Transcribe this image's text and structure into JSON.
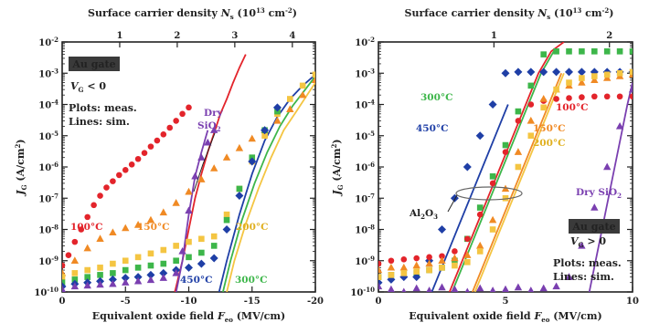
{
  "chart_data": [
    {
      "type": "scatter",
      "title": "",
      "top_axis_label": "Surface carrier density",
      "top_axis_symbol": "N",
      "top_axis_sub": "s",
      "top_axis_unit": "(10",
      "top_axis_unit_exp": "13",
      "top_axis_unit_tail": " cm",
      "top_axis_unit_exp2": "-2",
      "top_axis_unit_close": ")",
      "top_ticks": [
        "1",
        "2",
        "3",
        "4"
      ],
      "top_tick_values": [
        1,
        2,
        3,
        4
      ],
      "top_xlim": [
        0,
        4.4
      ],
      "xlabel": "Equivalent oxide field",
      "xlabel_symbol": "F",
      "xlabel_sub": "eo",
      "xlabel_unit": "(MV/cm)",
      "x_ticks": [
        "0",
        "-5",
        "-10",
        "-15",
        "-20"
      ],
      "x_tick_values": [
        0,
        -5,
        -10,
        -15,
        -20
      ],
      "xlim": [
        0,
        -20
      ],
      "ylabel_symbol": "J",
      "ylabel_sub": "G",
      "ylabel_unit": "(A/cm",
      "ylabel_unit_exp": "2",
      "ylabel_unit_close": ")",
      "y_ticks": [
        "-10",
        "-9",
        "-8",
        "-7",
        "-6",
        "-5",
        "-4",
        "-3",
        "-2"
      ],
      "ylim": [
        1e-10,
        0.01
      ],
      "yscale": "log",
      "box_label": "Au gate",
      "condition_prefix": "V",
      "condition_sub": "G",
      "condition_text": " < 0",
      "legend_lines": [
        "Plots: meas.",
        "Lines: sim."
      ],
      "series": [
        {
          "name": "100°C",
          "color": "#e3242b",
          "marker": "circle",
          "x": [
            0,
            -0.5,
            -1,
            -1.5,
            -2,
            -2.5,
            -3,
            -3.5,
            -4,
            -4.5,
            -5,
            -5.5,
            -6,
            -6.5,
            -7,
            -7.5,
            -8,
            -8.5,
            -9,
            -9.5,
            -10
          ],
          "y": [
            7e-10,
            1.5e-09,
            4e-09,
            1e-08,
            2.5e-08,
            6e-08,
            1.2e-07,
            2.2e-07,
            3.5e-07,
            5.5e-07,
            8e-07,
            1.2e-06,
            1.8e-06,
            2.8e-06,
            4.5e-06,
            7e-06,
            1.1e-05,
            1.8e-05,
            3e-05,
            5e-05,
            8e-05
          ]
        },
        {
          "name": "150°C",
          "color": "#f08a24",
          "marker": "triangle",
          "x": [
            0,
            -1,
            -2,
            -3,
            -4,
            -5,
            -6,
            -7,
            -8,
            -9,
            -10,
            -11,
            -12,
            -13,
            -14,
            -15,
            -16,
            -17,
            -18,
            -19,
            -20
          ],
          "y": [
            4e-10,
            1e-09,
            2.5e-09,
            5e-09,
            8e-09,
            1.1e-08,
            1.4e-08,
            2e-08,
            3.5e-08,
            7e-08,
            1.6e-07,
            4e-07,
            9e-07,
            2e-06,
            4e-06,
            8e-06,
            1.5e-05,
            3e-05,
            7e-05,
            0.0002,
            0.0006
          ]
        },
        {
          "name": "200°C",
          "color": "#f4c542",
          "marker": "square",
          "x": [
            0,
            -1,
            -2,
            -3,
            -4,
            -5,
            -6,
            -7,
            -8,
            -9,
            -10,
            -11,
            -12,
            -13,
            -14,
            -15,
            -16,
            -17,
            -18,
            -19,
            -20
          ],
          "y": [
            3e-10,
            4e-10,
            5e-10,
            6e-10,
            8e-10,
            1e-09,
            1.3e-09,
            1.7e-09,
            2.2e-09,
            3e-09,
            4e-09,
            5e-09,
            6e-09,
            3e-08,
            2e-07,
            1.5e-06,
            1e-05,
            5e-05,
            0.00015,
            0.0004,
            0.0009
          ]
        },
        {
          "name": "300°C",
          "color": "#3db64a",
          "marker": "square",
          "x": [
            0,
            -1,
            -2,
            -3,
            -4,
            -5,
            -6,
            -7,
            -8,
            -9,
            -10,
            -11,
            -12,
            -13,
            -14,
            -15,
            -16,
            -17
          ],
          "y": [
            2e-10,
            2.5e-10,
            3e-10,
            3.5e-10,
            4e-10,
            5e-10,
            6e-10,
            7e-10,
            8e-10,
            1e-09,
            1.3e-09,
            1.8e-09,
            3e-09,
            2e-08,
            2e-07,
            2e-06,
            1.5e-05,
            6e-05
          ]
        },
        {
          "name": "450°C",
          "color": "#1f3fa6",
          "marker": "diamond",
          "x": [
            0,
            -1,
            -2,
            -3,
            -4,
            -5,
            -6,
            -7,
            -8,
            -9,
            -10,
            -11,
            -12,
            -13,
            -14,
            -15,
            -16,
            -17
          ],
          "y": [
            1.5e-10,
            1.8e-10,
            2e-10,
            2.2e-10,
            2.5e-10,
            2.8e-10,
            3e-10,
            3.5e-10,
            4e-10,
            5e-10,
            6e-10,
            8e-10,
            1.2e-09,
            1e-08,
            1.2e-07,
            1.5e-06,
            1.5e-05,
            8e-05
          ]
        },
        {
          "name": "Dry SiO2",
          "color": "#7a3fb0",
          "marker": "triangle",
          "x": [
            0,
            -1,
            -2,
            -3,
            -4,
            -5,
            -6,
            -7,
            -8,
            -9,
            -9.5,
            -10,
            -10.5,
            -11,
            -11.5,
            -12
          ],
          "y": [
            1.2e-10,
            1.5e-10,
            1.6e-10,
            1.7e-10,
            1.8e-10,
            2e-10,
            2.2e-10,
            2.4e-10,
            2.8e-10,
            4e-10,
            2e-09,
            4e-08,
            5e-07,
            2e-06,
            6e-06,
            1.5e-05
          ]
        }
      ],
      "sim_lines": [
        {
          "color": "#e3242b",
          "x": [
            -8.9,
            -9.5,
            -10,
            -10.5,
            -11,
            -11.5,
            -12,
            -12.5,
            -13,
            -13.5,
            -14,
            -14.5
          ],
          "y": [
            1e-10,
            1e-09,
            1e-08,
            1e-07,
            6e-07,
            3e-06,
            1.2e-05,
            5e-05,
            0.00015,
            0.0005,
            0.0015,
            0.004
          ]
        },
        {
          "color": "#7a3fb0",
          "x": [
            -9,
            -9.5,
            -10,
            -10.5,
            -11,
            -11.5
          ],
          "y": [
            1e-10,
            1e-09,
            3e-08,
            5e-07,
            3e-06,
            1.5e-05
          ]
        },
        {
          "color": "#1f3fa6",
          "x": [
            -12.4,
            -13,
            -14,
            -15,
            -16,
            -17,
            -18,
            -19,
            -20
          ],
          "y": [
            1e-10,
            1e-09,
            3e-08,
            6e-07,
            7e-06,
            4e-05,
            0.00015,
            0.0004,
            0.0009
          ]
        },
        {
          "color": "#3db64a",
          "x": [
            -12.7,
            -13.3,
            -14.2,
            -15.2,
            -16.2,
            -17.2,
            -18.2,
            -19.2,
            -20
          ],
          "y": [
            1e-10,
            1e-09,
            2e-08,
            3e-07,
            3e-06,
            2e-05,
            9e-05,
            0.0003,
            0.0008
          ]
        },
        {
          "color": "#f4c542",
          "x": [
            -13,
            -13.6,
            -14.5,
            -15.5,
            -16.5,
            -17.5,
            -18.5,
            -19.5,
            -20
          ],
          "y": [
            1e-10,
            1e-09,
            1.5e-08,
            2e-07,
            2e-06,
            1.5e-05,
            6e-05,
            0.00025,
            0.0005
          ]
        }
      ],
      "annotations": [
        {
          "text": "100°C",
          "color": "#e3242b"
        },
        {
          "text": "150°C",
          "color": "#f08a24"
        },
        {
          "text": "200°C",
          "color": "#e0b020"
        },
        {
          "text": "450°C",
          "color": "#1f3fa6"
        },
        {
          "text": "300°C",
          "color": "#3db64a"
        },
        {
          "text": "Dry",
          "color": "#7a3fb0"
        },
        {
          "text": "SiO",
          "sub": "2",
          "color": "#7a3fb0"
        }
      ]
    },
    {
      "type": "scatter",
      "title": "",
      "top_axis_label": "Surface carrier density",
      "top_axis_symbol": "N",
      "top_axis_sub": "s",
      "top_axis_unit": "(10",
      "top_axis_unit_exp": "13",
      "top_axis_unit_tail": " cm",
      "top_axis_unit_exp2": "-2",
      "top_axis_unit_close": ")",
      "top_ticks": [
        "1",
        "2"
      ],
      "top_tick_values": [
        1,
        2
      ],
      "top_xlim": [
        0,
        2.2
      ],
      "xlabel": "Equivalent oxide field",
      "xlabel_symbol": "F",
      "xlabel_sub": "eo",
      "xlabel_unit": "(MV/cm)",
      "x_ticks": [
        "0",
        "5",
        "10"
      ],
      "x_tick_values": [
        0,
        5,
        10
      ],
      "xlim": [
        0,
        10
      ],
      "ylabel_symbol": "J",
      "ylabel_sub": "G",
      "ylabel_unit": "(A/cm",
      "ylabel_unit_exp": "2",
      "ylabel_unit_close": ")",
      "y_ticks": [
        "-10",
        "-9",
        "-8",
        "-7",
        "-6",
        "-5",
        "-4",
        "-3",
        "-2"
      ],
      "ylim": [
        1e-10,
        0.01
      ],
      "yscale": "log",
      "box_label": "Au gate",
      "condition_prefix": "V",
      "condition_sub": "G",
      "condition_text": " > 0",
      "legend_lines": [
        "Plots: meas.",
        "Lines: sim."
      ],
      "series": [
        {
          "name": "300°C",
          "color": "#3db64a",
          "marker": "square",
          "x": [
            0,
            0.5,
            1,
            1.5,
            2,
            2.5,
            3,
            3.5,
            4,
            4.5,
            5,
            5.5,
            6,
            6.5,
            7,
            7.5,
            8,
            8.5,
            9,
            9.5,
            10
          ],
          "y": [
            3e-10,
            3.5e-10,
            4e-10,
            4e-10,
            5e-10,
            6e-10,
            1e-09,
            5e-09,
            5e-08,
            5e-07,
            5e-06,
            6e-05,
            0.0004,
            0.004,
            0.005,
            0.005,
            0.005,
            0.005,
            0.005,
            0.005,
            0.005
          ]
        },
        {
          "name": "450°C",
          "color": "#1f3fa6",
          "marker": "diamond",
          "x": [
            0,
            0.5,
            1,
            1.5,
            2,
            2.5,
            3,
            3.5,
            4,
            4.5,
            5,
            5.5,
            6,
            6.5,
            7,
            7.5,
            8,
            8.5,
            9,
            9.5,
            10
          ],
          "y": [
            2e-10,
            2.5e-10,
            3e-10,
            3e-10,
            1e-09,
            1e-08,
            1e-07,
            1e-06,
            1e-05,
            0.0001,
            0.001,
            0.0011,
            0.0011,
            0.0011,
            0.0011,
            0.0011,
            0.0011,
            0.0011,
            0.0011,
            0.0011,
            0.0011
          ]
        },
        {
          "name": "100°C",
          "color": "#e3242b",
          "marker": "circle",
          "x": [
            0,
            0.5,
            1,
            1.5,
            2,
            2.5,
            3,
            3.5,
            4,
            4.5,
            5,
            5.5,
            6,
            6.5,
            7,
            7.5,
            8,
            8.5,
            9,
            9.5,
            10
          ],
          "y": [
            8e-10,
            1e-09,
            1.1e-09,
            1.2e-09,
            1.3e-09,
            1.4e-09,
            2e-09,
            5e-09,
            3e-08,
            3e-07,
            3e-06,
            3e-05,
            0.0001,
            0.00013,
            0.00015,
            0.00016,
            0.00017,
            0.00018,
            0.00018,
            0.00018,
            0.00018
          ]
        },
        {
          "name": "150°C",
          "color": "#f08a24",
          "marker": "triangle",
          "x": [
            0,
            0.5,
            1,
            1.5,
            2,
            2.5,
            3,
            3.5,
            4,
            4.5,
            5,
            5.5,
            6,
            6.5,
            7,
            7.5,
            8,
            8.5,
            9,
            9.5,
            10
          ],
          "y": [
            5e-10,
            6e-10,
            6e-10,
            7e-10,
            8e-10,
            1e-09,
            1.2e-09,
            1.5e-09,
            3e-09,
            2e-08,
            2e-07,
            3e-06,
            3e-05,
            0.00015,
            0.0003,
            0.0004,
            0.0005,
            0.0006,
            0.0007,
            0.0008,
            0.0009
          ]
        },
        {
          "name": "200°C",
          "color": "#f4c542",
          "marker": "square",
          "x": [
            0,
            0.5,
            1,
            1.5,
            2,
            2.5,
            3,
            3.5,
            4,
            4.5,
            5,
            5.5,
            6,
            6.5,
            7,
            7.5,
            8,
            8.5,
            9,
            9.5,
            10
          ],
          "y": [
            3e-10,
            3.5e-10,
            4e-10,
            4.5e-10,
            5e-10,
            6e-10,
            7e-10,
            9e-10,
            2e-09,
            1e-08,
            1e-07,
            1e-06,
            1e-05,
            8e-05,
            0.0003,
            0.0005,
            0.0007,
            0.0008,
            0.0009,
            0.001,
            0.0011
          ]
        },
        {
          "name": "Dry SiO2",
          "color": "#7a3fb0",
          "marker": "triangle",
          "x": [
            0,
            0.5,
            1,
            1.5,
            2,
            2.5,
            3,
            3.5,
            4,
            4.5,
            5,
            5.5,
            6,
            6.5,
            7,
            7.5,
            8,
            8.5,
            9,
            9.5,
            10
          ],
          "y": [
            1.5e-10,
            1.2e-10,
            1e-10,
            1.3e-10,
            1.1e-10,
            1.4e-10,
            1.2e-10,
            1e-10,
            1.3e-10,
            1.1e-10,
            1.2e-10,
            1.4e-10,
            1.1e-10,
            1.3e-10,
            1.5e-10,
            3e-10,
            3e-09,
            5e-08,
            1e-06,
            2e-05,
            0.0003
          ]
        }
      ],
      "sim_lines": [
        {
          "color": "#1f3fa6",
          "x": [
            2.1,
            2.6,
            3.1,
            3.6,
            4.1,
            4.6,
            5.1
          ],
          "y": [
            1e-10,
            1e-09,
            1e-08,
            1e-07,
            1e-06,
            1e-05,
            0.0001
          ]
        },
        {
          "color": "#e3242b",
          "x": [
            2.8,
            3.3,
            3.8,
            4.3,
            4.8,
            5.3,
            5.8,
            6.3,
            6.8,
            7.3
          ],
          "y": [
            1e-10,
            1e-09,
            1e-08,
            1e-07,
            1e-06,
            1e-05,
            0.0001,
            0.001,
            0.005,
            0.01
          ]
        },
        {
          "color": "#3db64a",
          "x": [
            2.9,
            3.4,
            3.9,
            4.4,
            4.9,
            5.4,
            5.9,
            6.4,
            6.9
          ],
          "y": [
            1e-10,
            1e-09,
            1e-08,
            1e-07,
            1e-06,
            1e-05,
            0.0001,
            0.001,
            0.005
          ]
        },
        {
          "color": "#f4c542",
          "x": [
            3.8,
            4.3,
            4.8,
            5.3,
            5.8,
            6.3,
            6.8,
            7.3
          ],
          "y": [
            1e-10,
            1e-09,
            1e-08,
            1e-07,
            1e-06,
            1e-05,
            0.0001,
            0.001
          ]
        },
        {
          "color": "#f08a24",
          "x": [
            3.7,
            4.2,
            4.7,
            5.2,
            5.7,
            6.2,
            6.7,
            7.2
          ],
          "y": [
            1e-10,
            1e-09,
            1e-08,
            1e-07,
            1e-06,
            1e-05,
            0.0001,
            0.001
          ]
        },
        {
          "color": "#7a3fb0",
          "x": [
            8.3,
            8.8,
            9.3,
            9.8,
            10
          ],
          "y": [
            1e-10,
            1e-08,
            1e-06,
            0.0001,
            0.0005
          ]
        }
      ],
      "annotations": [
        {
          "text": "300°C",
          "color": "#3db64a"
        },
        {
          "text": "450°C",
          "color": "#1f3fa6"
        },
        {
          "text": "100°C",
          "color": "#e3242b"
        },
        {
          "text": "150°C",
          "color": "#f08a24"
        },
        {
          "text": "200°C",
          "color": "#e0b020"
        },
        {
          "text": "Al",
          "sub": "2",
          "text2": "O",
          "sub2": "3",
          "color": "#222"
        },
        {
          "text": "Dry SiO",
          "sub": "2",
          "color": "#7a3fb0"
        }
      ]
    }
  ]
}
